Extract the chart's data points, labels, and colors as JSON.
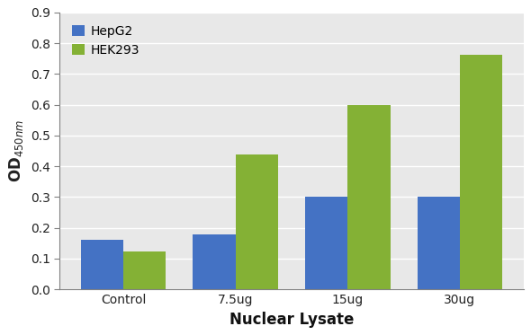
{
  "categories": [
    "Control",
    "7.5ug",
    "15ug",
    "30ug"
  ],
  "hepg2_values": [
    0.16,
    0.18,
    0.3,
    0.3
  ],
  "hek293_values": [
    0.123,
    0.437,
    0.6,
    0.762
  ],
  "hepg2_color": "#4472C4",
  "hek293_color": "#84B135",
  "xlabel": "Nuclear Lysate",
  "ylim": [
    0,
    0.9
  ],
  "yticks": [
    0.0,
    0.1,
    0.2,
    0.3,
    0.4,
    0.5,
    0.6,
    0.7,
    0.8,
    0.9
  ],
  "legend_labels": [
    "HepG2",
    "HEK293"
  ],
  "bar_width": 0.38,
  "plot_bg_color": "#E8E8E8",
  "fig_bg_color": "#ffffff",
  "grid_color": "#ffffff",
  "spine_color": "#808080"
}
